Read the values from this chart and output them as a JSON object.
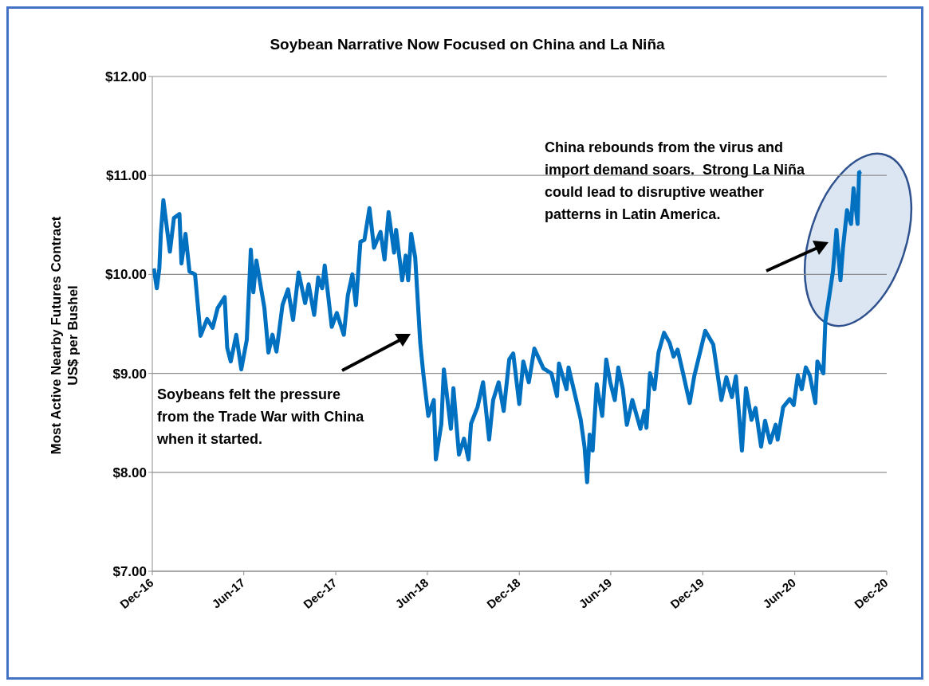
{
  "chart_data": {
    "type": "line",
    "title": "Soybean Narrative Now Focused on China and La Niña",
    "ylabel": "Most Active Nearby Futures Contract\nUS$ per Bushel",
    "annotations": [
      "Soybeans felt the pressure from the Trade War with China when it started.",
      "China rebounds from the virus and import demand soars.  Strong La Niña could lead to disruptive weather patterns in Latin America."
    ],
    "xlim": [
      "2016-12-01",
      "2020-12-01"
    ],
    "xticks": [
      {
        "value": "2016-12-01",
        "label": "Dec-16"
      },
      {
        "value": "2017-06-01",
        "label": "Jun-17"
      },
      {
        "value": "2017-12-01",
        "label": "Dec-17"
      },
      {
        "value": "2018-06-01",
        "label": "Jun-18"
      },
      {
        "value": "2018-12-01",
        "label": "Dec-18"
      },
      {
        "value": "2019-06-01",
        "label": "Jun-19"
      },
      {
        "value": "2019-12-01",
        "label": "Dec-19"
      },
      {
        "value": "2020-06-01",
        "label": "Jun-20"
      },
      {
        "value": "2020-12-01",
        "label": "Dec-20"
      }
    ],
    "ylim": [
      7,
      12
    ],
    "yticks": [
      {
        "value": 7,
        "label": "$7.00"
      },
      {
        "value": 8,
        "label": "$8.00"
      },
      {
        "value": 9,
        "label": "$9.00"
      },
      {
        "value": 10,
        "label": "$10.00"
      },
      {
        "value": 11,
        "label": "$11.00"
      },
      {
        "value": 12,
        "label": "$12.00"
      }
    ],
    "grid": "y",
    "series": [
      {
        "color": "#0070c0",
        "x": [
          "2016-12-04",
          "2016-12-10",
          "2016-12-15",
          "2016-12-18",
          "2016-12-23",
          "2017-01-05",
          "2017-01-13",
          "2017-01-24",
          "2017-01-28",
          "2017-02-05",
          "2017-02-13",
          "2017-02-24",
          "2017-03-07",
          "2017-03-20",
          "2017-03-31",
          "2017-04-10",
          "2017-04-24",
          "2017-04-29",
          "2017-05-06",
          "2017-05-17",
          "2017-05-27",
          "2017-06-07",
          "2017-06-15",
          "2017-06-20",
          "2017-06-26",
          "2017-07-12",
          "2017-07-20",
          "2017-07-28",
          "2017-08-05",
          "2017-08-17",
          "2017-08-28",
          "2017-09-07",
          "2017-09-18",
          "2017-10-01",
          "2017-10-08",
          "2017-10-19",
          "2017-10-27",
          "2017-11-04",
          "2017-11-09",
          "2017-11-23",
          "2017-12-03",
          "2017-12-17",
          "2017-12-25",
          "2018-01-03",
          "2018-01-10",
          "2018-01-19",
          "2018-01-27",
          "2018-02-06",
          "2018-02-15",
          "2018-02-28",
          "2018-03-08",
          "2018-03-16",
          "2018-03-27",
          "2018-03-31",
          "2018-04-12",
          "2018-04-19",
          "2018-04-24",
          "2018-04-30",
          "2018-05-08",
          "2018-05-18",
          "2018-05-24",
          "2018-06-03",
          "2018-06-14",
          "2018-06-18",
          "2018-06-29",
          "2018-07-04",
          "2018-07-18",
          "2018-07-23",
          "2018-08-03",
          "2018-08-13",
          "2018-08-22",
          "2018-08-27",
          "2018-09-09",
          "2018-09-20",
          "2018-10-02",
          "2018-10-10",
          "2018-10-21",
          "2018-10-31",
          "2018-11-11",
          "2018-11-19",
          "2018-12-01",
          "2018-12-09",
          "2018-12-20",
          "2018-12-31",
          "2019-01-18",
          "2019-02-03",
          "2019-02-14",
          "2019-02-18",
          "2019-03-05",
          "2019-03-09",
          "2019-03-22",
          "2019-04-02",
          "2019-04-10",
          "2019-04-15",
          "2019-04-20",
          "2019-04-26",
          "2019-05-04",
          "2019-05-15",
          "2019-05-23",
          "2019-05-31",
          "2019-06-09",
          "2019-06-16",
          "2019-06-25",
          "2019-07-03",
          "2019-07-14",
          "2019-07-30",
          "2019-08-07",
          "2019-08-11",
          "2019-08-18",
          "2019-08-27",
          "2019-09-04",
          "2019-09-15",
          "2019-09-26",
          "2019-10-04",
          "2019-10-12",
          "2019-10-22",
          "2019-11-05",
          "2019-11-14",
          "2019-12-06",
          "2019-12-22",
          "2020-01-07",
          "2020-01-17",
          "2020-01-28",
          "2020-02-05",
          "2020-02-17",
          "2020-02-25",
          "2020-03-07",
          "2020-03-15",
          "2020-03-26",
          "2020-04-03",
          "2020-04-13",
          "2020-04-24",
          "2020-04-28",
          "2020-05-09",
          "2020-05-22",
          "2020-05-30",
          "2020-06-07",
          "2020-06-15",
          "2020-06-23",
          "2020-07-01",
          "2020-07-12",
          "2020-07-16",
          "2020-07-28",
          "2020-08-01",
          "2020-08-09",
          "2020-08-16",
          "2020-08-23",
          "2020-08-31",
          "2020-09-05",
          "2020-09-13",
          "2020-09-21",
          "2020-09-26",
          "2020-10-04",
          "2020-10-07",
          "2020-10-11"
        ],
        "values": [
          10.06,
          9.86,
          10.06,
          10.41,
          10.75,
          10.23,
          10.57,
          10.61,
          10.11,
          10.41,
          10.03,
          10.0,
          9.38,
          9.55,
          9.46,
          9.66,
          9.77,
          9.26,
          9.12,
          9.39,
          9.04,
          9.34,
          10.25,
          9.82,
          10.14,
          9.66,
          9.21,
          9.39,
          9.22,
          9.69,
          9.85,
          9.54,
          10.02,
          9.71,
          9.9,
          9.59,
          9.97,
          9.86,
          10.09,
          9.47,
          9.61,
          9.39,
          9.79,
          10.0,
          9.69,
          10.33,
          10.35,
          10.67,
          10.27,
          10.43,
          10.15,
          10.63,
          10.22,
          10.45,
          9.94,
          10.19,
          9.94,
          10.41,
          10.17,
          9.31,
          9.0,
          8.57,
          8.73,
          8.13,
          8.49,
          9.04,
          8.44,
          8.85,
          8.18,
          8.34,
          8.13,
          8.49,
          8.66,
          8.91,
          8.33,
          8.73,
          8.91,
          8.62,
          9.14,
          9.2,
          8.69,
          9.12,
          8.91,
          9.25,
          9.05,
          9.0,
          8.77,
          9.1,
          8.84,
          9.06,
          8.78,
          8.54,
          8.25,
          7.9,
          8.38,
          8.22,
          8.89,
          8.57,
          9.14,
          8.91,
          8.73,
          9.06,
          8.84,
          8.48,
          8.73,
          8.44,
          8.62,
          8.45,
          9.0,
          8.84,
          9.21,
          9.41,
          9.31,
          9.17,
          9.24,
          9.02,
          8.7,
          8.97,
          9.43,
          9.29,
          8.73,
          8.96,
          8.76,
          8.97,
          8.22,
          8.85,
          8.53,
          8.65,
          8.26,
          8.52,
          8.3,
          8.48,
          8.33,
          8.66,
          8.74,
          8.68,
          8.98,
          8.84,
          9.06,
          8.98,
          8.7,
          9.12,
          9.0,
          9.53,
          9.79,
          10.03,
          10.45,
          9.94,
          10.27,
          10.65,
          10.51,
          10.87,
          10.51,
          11.03,
          11.04
        ]
      }
    ]
  }
}
